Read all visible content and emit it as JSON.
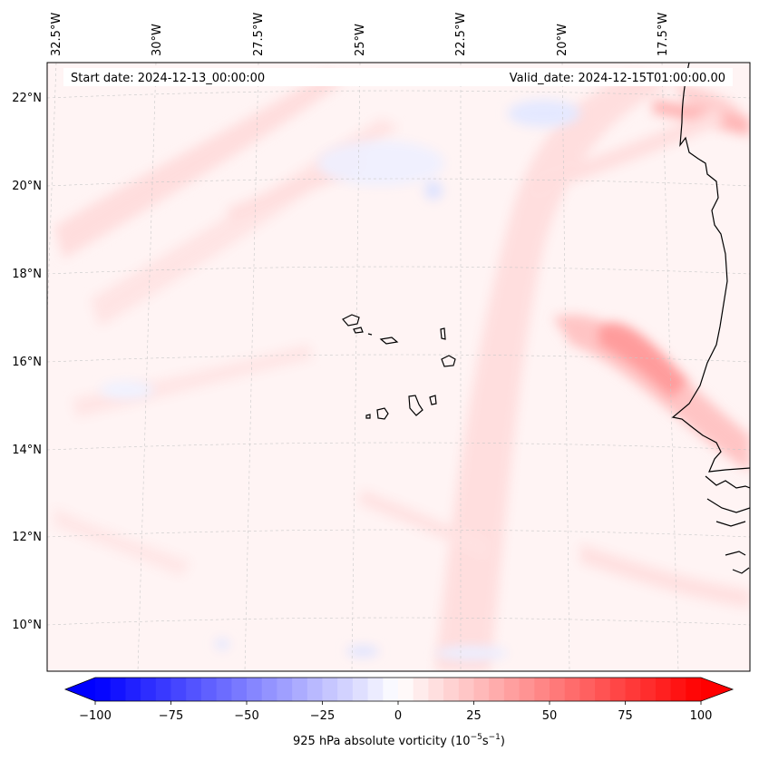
{
  "map": {
    "start_label": "Start date: 2024-12-13_00:00:00",
    "valid_label": "Valid_date: 2024-12-15T01:00:00.00",
    "lon_labels": [
      "32.5°W",
      "30°W",
      "27.5°W",
      "25°W",
      "22.5°W",
      "20°W",
      "17.5°W"
    ],
    "lat_labels": [
      "22°N",
      "20°N",
      "18°N",
      "16°N",
      "14°N",
      "12°N",
      "10°N"
    ]
  },
  "colorbar": {
    "label_text": "925 hPa absolute vorticity (10",
    "label_exp1": "−5",
    "label_mid": "s",
    "label_exp2": "−1",
    "label_end": ")",
    "ticks": [
      "−100",
      "−75",
      "−50",
      "−25",
      "0",
      "25",
      "50",
      "75",
      "100"
    ],
    "min": -100,
    "max": 100,
    "levels": 41,
    "colors": {
      "negative": "#0000ff",
      "neutral": "#ffffff",
      "positive": "#ff0000"
    }
  }
}
